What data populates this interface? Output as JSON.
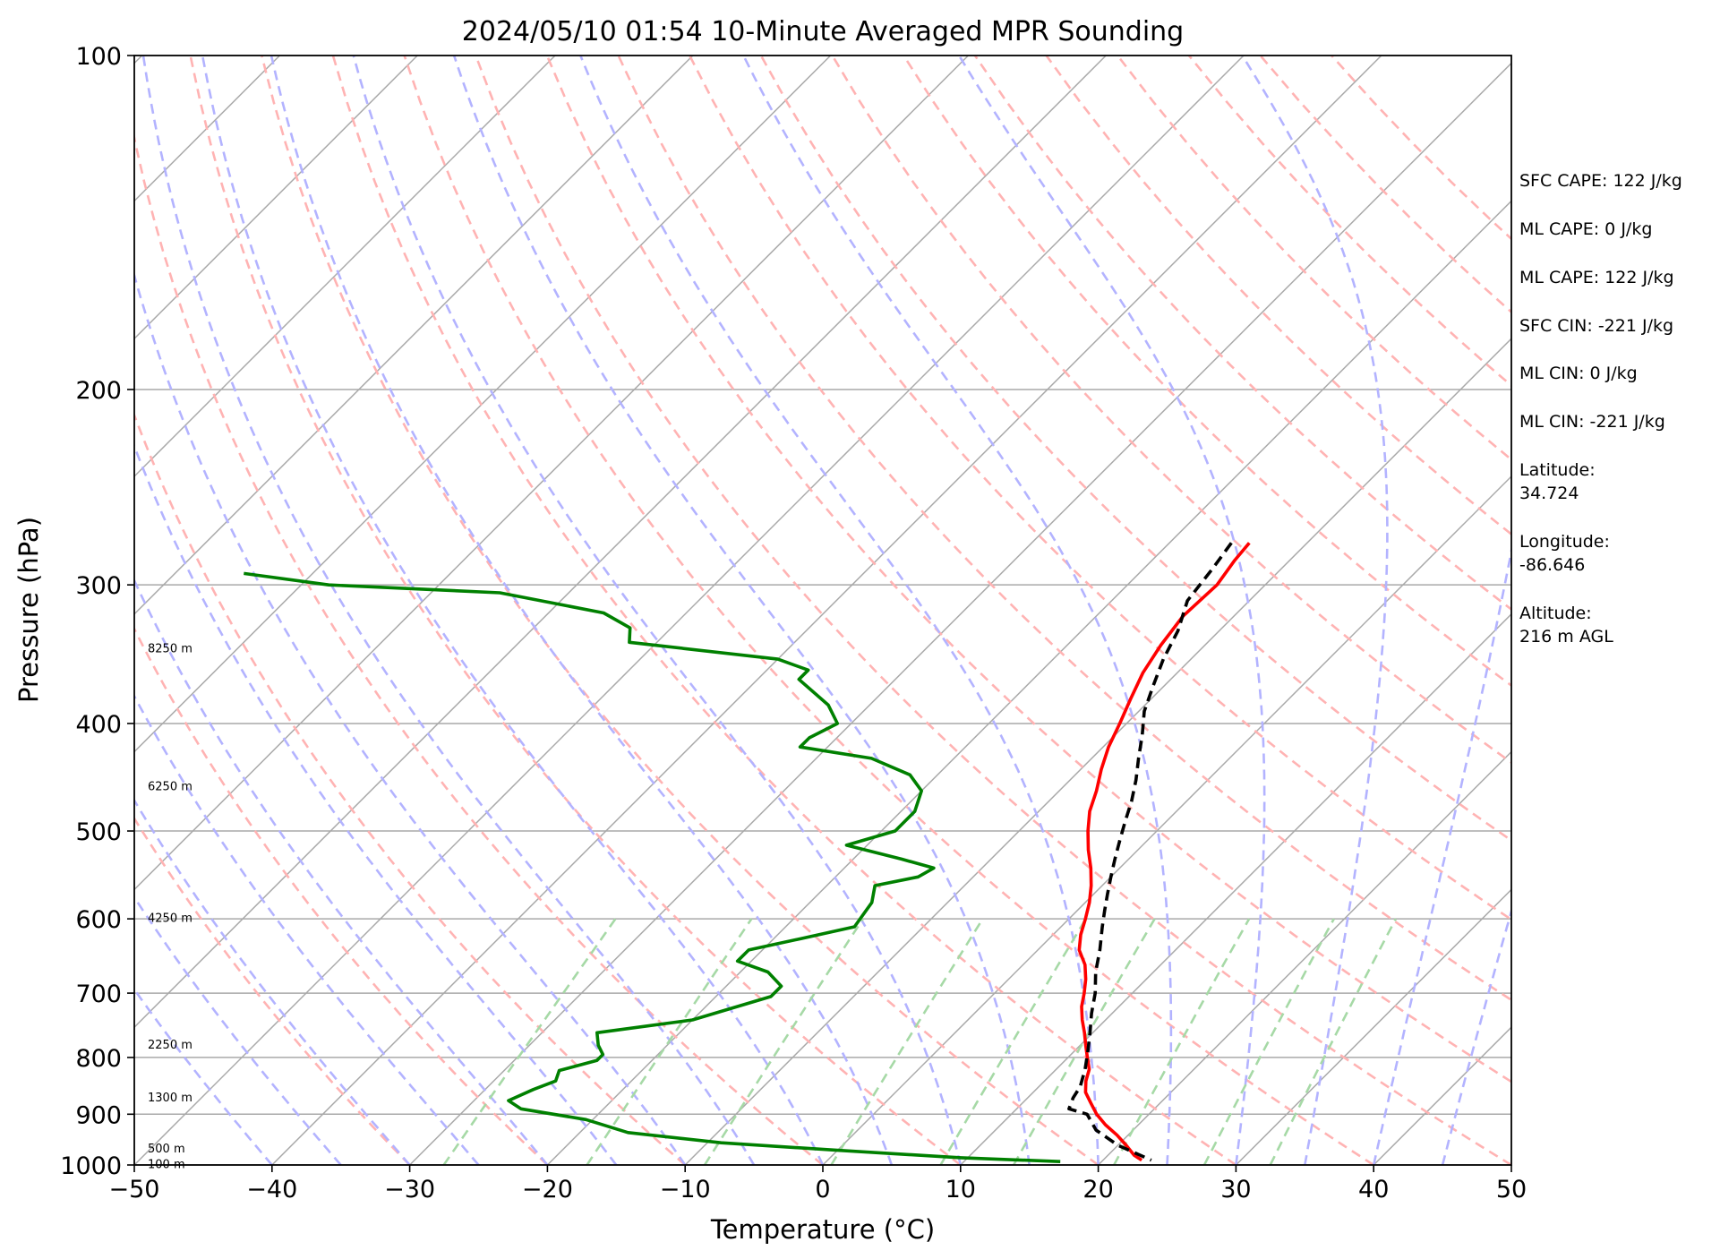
{
  "chart_data": {
    "type": "line",
    "title": "2024/05/10 01:54 10-Minute Averaged MPR Sounding",
    "xlabel": "Temperature (°C)",
    "ylabel": "Pressure (hPa)",
    "xlim": [
      -50,
      50
    ],
    "ylim": [
      1000,
      100
    ],
    "y_scale": "log",
    "skew_t": true,
    "x_ticks": [
      "−50",
      "−40",
      "−30",
      "−20",
      "−10",
      "0",
      "10",
      "20",
      "30",
      "40",
      "50"
    ],
    "y_ticks": [
      "1000",
      "900",
      "800",
      "700",
      "600",
      "500",
      "400",
      "300",
      "200",
      "100"
    ],
    "grid": true,
    "colors": {
      "temperature": "#ff0000",
      "dewpoint": "#008000",
      "parcel": "#000000",
      "isotherm": "#a9a9a9",
      "dry_adiabat": "#ffb3b3",
      "moist_adiabat": "#b3b3ff",
      "mixing_ratio": "#a6d9a6"
    },
    "height_labels": [
      "8250 m",
      "6250 m",
      "4250 m",
      "2250 m",
      "1300 m",
      "500 m",
      "100 m"
    ],
    "height_label_pressures": [
      342,
      455,
      598,
      778,
      868,
      965,
      997
    ],
    "series": [
      {
        "role": "temperature",
        "points": [
          [
            275,
            -14.2
          ],
          [
            285,
            -14.0
          ],
          [
            300,
            -13.5
          ],
          [
            320,
            -13.7
          ],
          [
            340,
            -13.2
          ],
          [
            360,
            -12.5
          ],
          [
            380,
            -11.5
          ],
          [
            400,
            -10.5
          ],
          [
            420,
            -9.6
          ],
          [
            440,
            -8.5
          ],
          [
            460,
            -7.3
          ],
          [
            480,
            -6.3
          ],
          [
            500,
            -5.0
          ],
          [
            520,
            -3.6
          ],
          [
            540,
            -2.1
          ],
          [
            560,
            -0.8
          ],
          [
            580,
            0.3
          ],
          [
            600,
            1.2
          ],
          [
            620,
            2.0
          ],
          [
            640,
            3.0
          ],
          [
            660,
            4.5
          ],
          [
            680,
            5.6
          ],
          [
            700,
            6.5
          ],
          [
            720,
            7.3
          ],
          [
            740,
            8.3
          ],
          [
            760,
            9.4
          ],
          [
            780,
            10.4
          ],
          [
            800,
            11.4
          ],
          [
            820,
            12.4
          ],
          [
            840,
            13.0
          ],
          [
            860,
            13.8
          ],
          [
            880,
            15.0
          ],
          [
            900,
            16.2
          ],
          [
            920,
            17.6
          ],
          [
            940,
            19.2
          ],
          [
            960,
            20.6
          ],
          [
            980,
            21.9
          ],
          [
            990,
            22.8
          ]
        ]
      },
      {
        "role": "dewpoint",
        "points": [
          [
            293,
            -85.0
          ],
          [
            300,
            -78.0
          ],
          [
            305,
            -65.0
          ],
          [
            318,
            -56.0
          ],
          [
            328,
            -53.0
          ],
          [
            338,
            -52.0
          ],
          [
            350,
            -40.0
          ],
          [
            358,
            -37.0
          ],
          [
            365,
            -37.0
          ],
          [
            385,
            -33.0
          ],
          [
            400,
            -31.0
          ],
          [
            412,
            -32.0
          ],
          [
            420,
            -32.0
          ],
          [
            430,
            -26.0
          ],
          [
            445,
            -22.0
          ],
          [
            460,
            -20.0
          ],
          [
            480,
            -19.0
          ],
          [
            500,
            -19.0
          ],
          [
            515,
            -21.5
          ],
          [
            530,
            -16.5
          ],
          [
            540,
            -13.5
          ],
          [
            550,
            -14.0
          ],
          [
            560,
            -16.5
          ],
          [
            580,
            -15.5
          ],
          [
            610,
            -15.0
          ],
          [
            625,
            -18.0
          ],
          [
            640,
            -21.0
          ],
          [
            655,
            -21.0
          ],
          [
            670,
            -18.0
          ],
          [
            690,
            -16.0
          ],
          [
            705,
            -16.0
          ],
          [
            740,
            -20.0
          ],
          [
            760,
            -26.0
          ],
          [
            780,
            -25.0
          ],
          [
            795,
            -24.0
          ],
          [
            805,
            -24.0
          ],
          [
            822,
            -26.0
          ],
          [
            840,
            -25.5
          ],
          [
            855,
            -26.5
          ],
          [
            875,
            -27.5
          ],
          [
            890,
            -26.0
          ],
          [
            910,
            -20.5
          ],
          [
            935,
            -16.5
          ],
          [
            955,
            -9.0
          ],
          [
            970,
            0.0
          ],
          [
            985,
            9.5
          ],
          [
            993,
            17.0
          ]
        ]
      },
      {
        "role": "parcel",
        "points": [
          [
            275,
            -15.5
          ],
          [
            290,
            -15.0
          ],
          [
            310,
            -14.5
          ],
          [
            330,
            -13.0
          ],
          [
            350,
            -12.0
          ],
          [
            370,
            -10.8
          ],
          [
            390,
            -9.6
          ],
          [
            410,
            -8.0
          ],
          [
            430,
            -6.6
          ],
          [
            450,
            -5.2
          ],
          [
            470,
            -4.0
          ],
          [
            490,
            -3.0
          ],
          [
            510,
            -2.0
          ],
          [
            530,
            -1.0
          ],
          [
            550,
            0.0
          ],
          [
            570,
            1.0
          ],
          [
            590,
            2.0
          ],
          [
            610,
            3.0
          ],
          [
            640,
            4.5
          ],
          [
            670,
            5.8
          ],
          [
            700,
            7.3
          ],
          [
            730,
            8.5
          ],
          [
            760,
            9.8
          ],
          [
            790,
            11.0
          ],
          [
            820,
            12.1
          ],
          [
            850,
            13.0
          ],
          [
            870,
            13.3
          ],
          [
            890,
            13.8
          ],
          [
            900,
            15.5
          ],
          [
            930,
            17.3
          ],
          [
            960,
            20.0
          ],
          [
            990,
            23.5
          ]
        ]
      }
    ],
    "annotations": {
      "sfc_cape": "SFC CAPE: 122 J/kg",
      "ml_cape": "ML CAPE: 0 J/kg",
      "mu_cape": "ML CAPE: 122 J/kg",
      "sfc_cin": "SFC CIN: -221 J/kg",
      "ml_cin": "ML CIN: 0 J/kg",
      "mu_cin": "ML CIN: -221 J/kg",
      "lat_label": "Latitude:",
      "lat_value": "34.724",
      "lon_label": "Longitude:",
      "lon_value": "-86.646",
      "alt_label": "Altitude:",
      "alt_value": "216 m AGL"
    }
  }
}
